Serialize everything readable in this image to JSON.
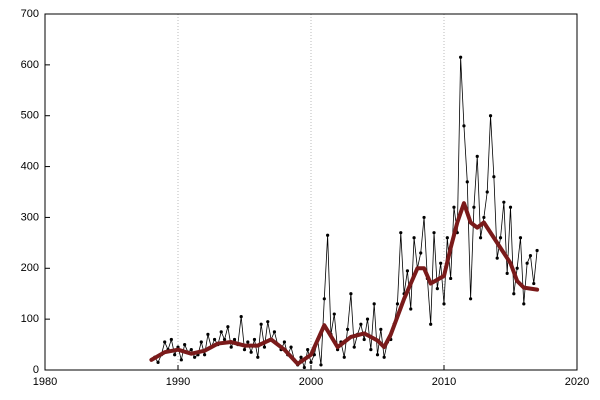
{
  "chart_data": {
    "type": "line",
    "xlim": [
      1980,
      2020
    ],
    "xticks": [
      1980,
      1990,
      2000,
      2010,
      2020
    ],
    "ylim": [
      0,
      700
    ],
    "yticks": [
      0,
      100,
      200,
      300,
      400,
      500,
      600,
      700
    ],
    "grid": "x",
    "series": [
      {
        "color": "#000000",
        "markers": true,
        "x": [
          1988,
          1988.25,
          1988.5,
          1988.75,
          1989,
          1989.25,
          1989.5,
          1989.75,
          1990,
          1990.25,
          1990.5,
          1990.75,
          1991,
          1991.25,
          1991.5,
          1991.75,
          1992,
          1992.25,
          1992.5,
          1992.75,
          1993,
          1993.25,
          1993.5,
          1993.75,
          1994,
          1994.25,
          1994.5,
          1994.75,
          1995,
          1995.25,
          1995.5,
          1995.75,
          1996,
          1996.25,
          1996.5,
          1996.75,
          1997,
          1997.25,
          1997.5,
          1997.75,
          1998,
          1998.25,
          1998.5,
          1998.75,
          1999,
          1999.25,
          1999.5,
          1999.75,
          2000,
          2000.25,
          2000.5,
          2000.75,
          2001,
          2001.25,
          2001.5,
          2001.75,
          2002,
          2002.25,
          2002.5,
          2002.75,
          2003,
          2003.25,
          2003.5,
          2003.75,
          2004,
          2004.25,
          2004.5,
          2004.75,
          2005,
          2005.25,
          2005.5,
          2005.75,
          2006,
          2006.25,
          2006.5,
          2006.75,
          2007,
          2007.25,
          2007.5,
          2007.75,
          2008,
          2008.25,
          2008.5,
          2008.75,
          2009,
          2009.25,
          2009.5,
          2009.75,
          2010,
          2010.25,
          2010.5,
          2010.75,
          2011,
          2011.25,
          2011.5,
          2011.75,
          2012,
          2012.25,
          2012.5,
          2012.75,
          2013,
          2013.25,
          2013.5,
          2013.75,
          2014,
          2014.25,
          2014.5,
          2014.75,
          2015,
          2015.25,
          2015.5,
          2015.75,
          2016,
          2016.25,
          2016.5,
          2016.75,
          2017
        ],
        "values": [
          20,
          25,
          15,
          30,
          55,
          40,
          60,
          30,
          45,
          20,
          50,
          35,
          40,
          25,
          30,
          55,
          30,
          70,
          45,
          60,
          50,
          75,
          60,
          85,
          45,
          60,
          50,
          105,
          40,
          55,
          35,
          60,
          25,
          90,
          45,
          95,
          60,
          75,
          50,
          40,
          55,
          30,
          45,
          20,
          10,
          25,
          5,
          40,
          15,
          30,
          60,
          10,
          140,
          265,
          70,
          110,
          40,
          55,
          25,
          80,
          150,
          45,
          70,
          90,
          60,
          100,
          40,
          130,
          30,
          80,
          25,
          55,
          60,
          90,
          130,
          270,
          150,
          195,
          120,
          260,
          200,
          230,
          300,
          180,
          90,
          270,
          160,
          210,
          130,
          260,
          180,
          320,
          270,
          615,
          480,
          370,
          140,
          320,
          420,
          260,
          300,
          350,
          500,
          380,
          220,
          260,
          330,
          190,
          320,
          150,
          200,
          260,
          130,
          210,
          225,
          170,
          235
        ]
      },
      {
        "color": "#7a1a1a",
        "markers": false,
        "x": [
          1988,
          1989,
          1990,
          1991,
          1992,
          1993,
          1994,
          1995,
          1996,
          1997,
          1998,
          1999,
          2000,
          2001,
          2002,
          2003,
          2004,
          2005,
          2005.5,
          2006,
          2007,
          2008,
          2008.5,
          2009,
          2010,
          2010.5,
          2011,
          2011.5,
          2012,
          2012.5,
          2013,
          2014,
          2015,
          2015.5,
          2016,
          2017
        ],
        "values": [
          20,
          35,
          40,
          32,
          38,
          52,
          55,
          48,
          48,
          60,
          40,
          12,
          30,
          88,
          45,
          65,
          72,
          58,
          45,
          70,
          140,
          200,
          200,
          170,
          185,
          240,
          290,
          328,
          290,
          280,
          290,
          250,
          210,
          175,
          162,
          158
        ]
      }
    ]
  }
}
